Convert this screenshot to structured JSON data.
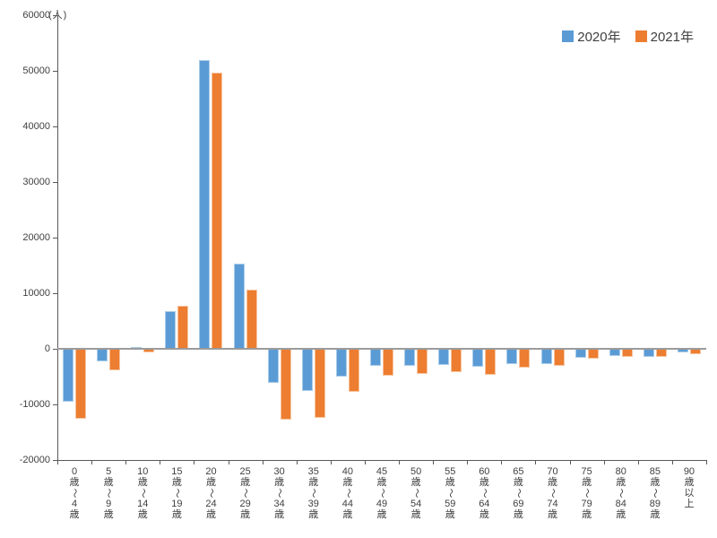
{
  "chart_data": {
    "type": "bar",
    "title": "",
    "unit_label": "(人)",
    "categories": [
      "0歳〜4歳",
      "5歳〜9歳",
      "10歳〜14歳",
      "15歳〜19歳",
      "20歳〜24歳",
      "25歳〜29歳",
      "30歳〜34歳",
      "35歳〜39歳",
      "40歳〜44歳",
      "45歳〜49歳",
      "50歳〜54歳",
      "55歳〜59歳",
      "60歳〜64歳",
      "65歳〜69歳",
      "70歳〜74歳",
      "75歳〜79歳",
      "80歳〜84歳",
      "85歳〜89歳",
      "90歳以上"
    ],
    "series": [
      {
        "name": "2020年",
        "color": "#5B9BD5",
        "border_color": "#A9CCE9",
        "values": [
          -9500,
          -2300,
          300,
          6700,
          52000,
          15400,
          -6100,
          -7600,
          -5000,
          -3000,
          -3000,
          -2900,
          -3300,
          -2800,
          -2700,
          -1600,
          -1300,
          -1400,
          -700
        ]
      },
      {
        "name": "2021年",
        "color": "#ED7D31",
        "border_color": "#F6C49E",
        "values": [
          -12500,
          -3800,
          -700,
          7800,
          49700,
          10600,
          -12700,
          -12400,
          -7700,
          -4900,
          -4500,
          -4200,
          -4600,
          -3400,
          -3000,
          -1800,
          -1500,
          -1500,
          -900
        ]
      }
    ],
    "ylim": [
      -20000,
      60000
    ],
    "ytick_interval": 10000,
    "ytick_labels": [
      "60000",
      "50000",
      "40000",
      "30000",
      "20000",
      "10000",
      "0",
      "-10000",
      "-20000"
    ],
    "legend": {
      "position": "top-right",
      "entries": [
        "2020年",
        "2021年"
      ]
    },
    "grid": false,
    "axis_color": "#595959",
    "zero_line_color": "#9B9B9B",
    "text_color": "#404040"
  }
}
